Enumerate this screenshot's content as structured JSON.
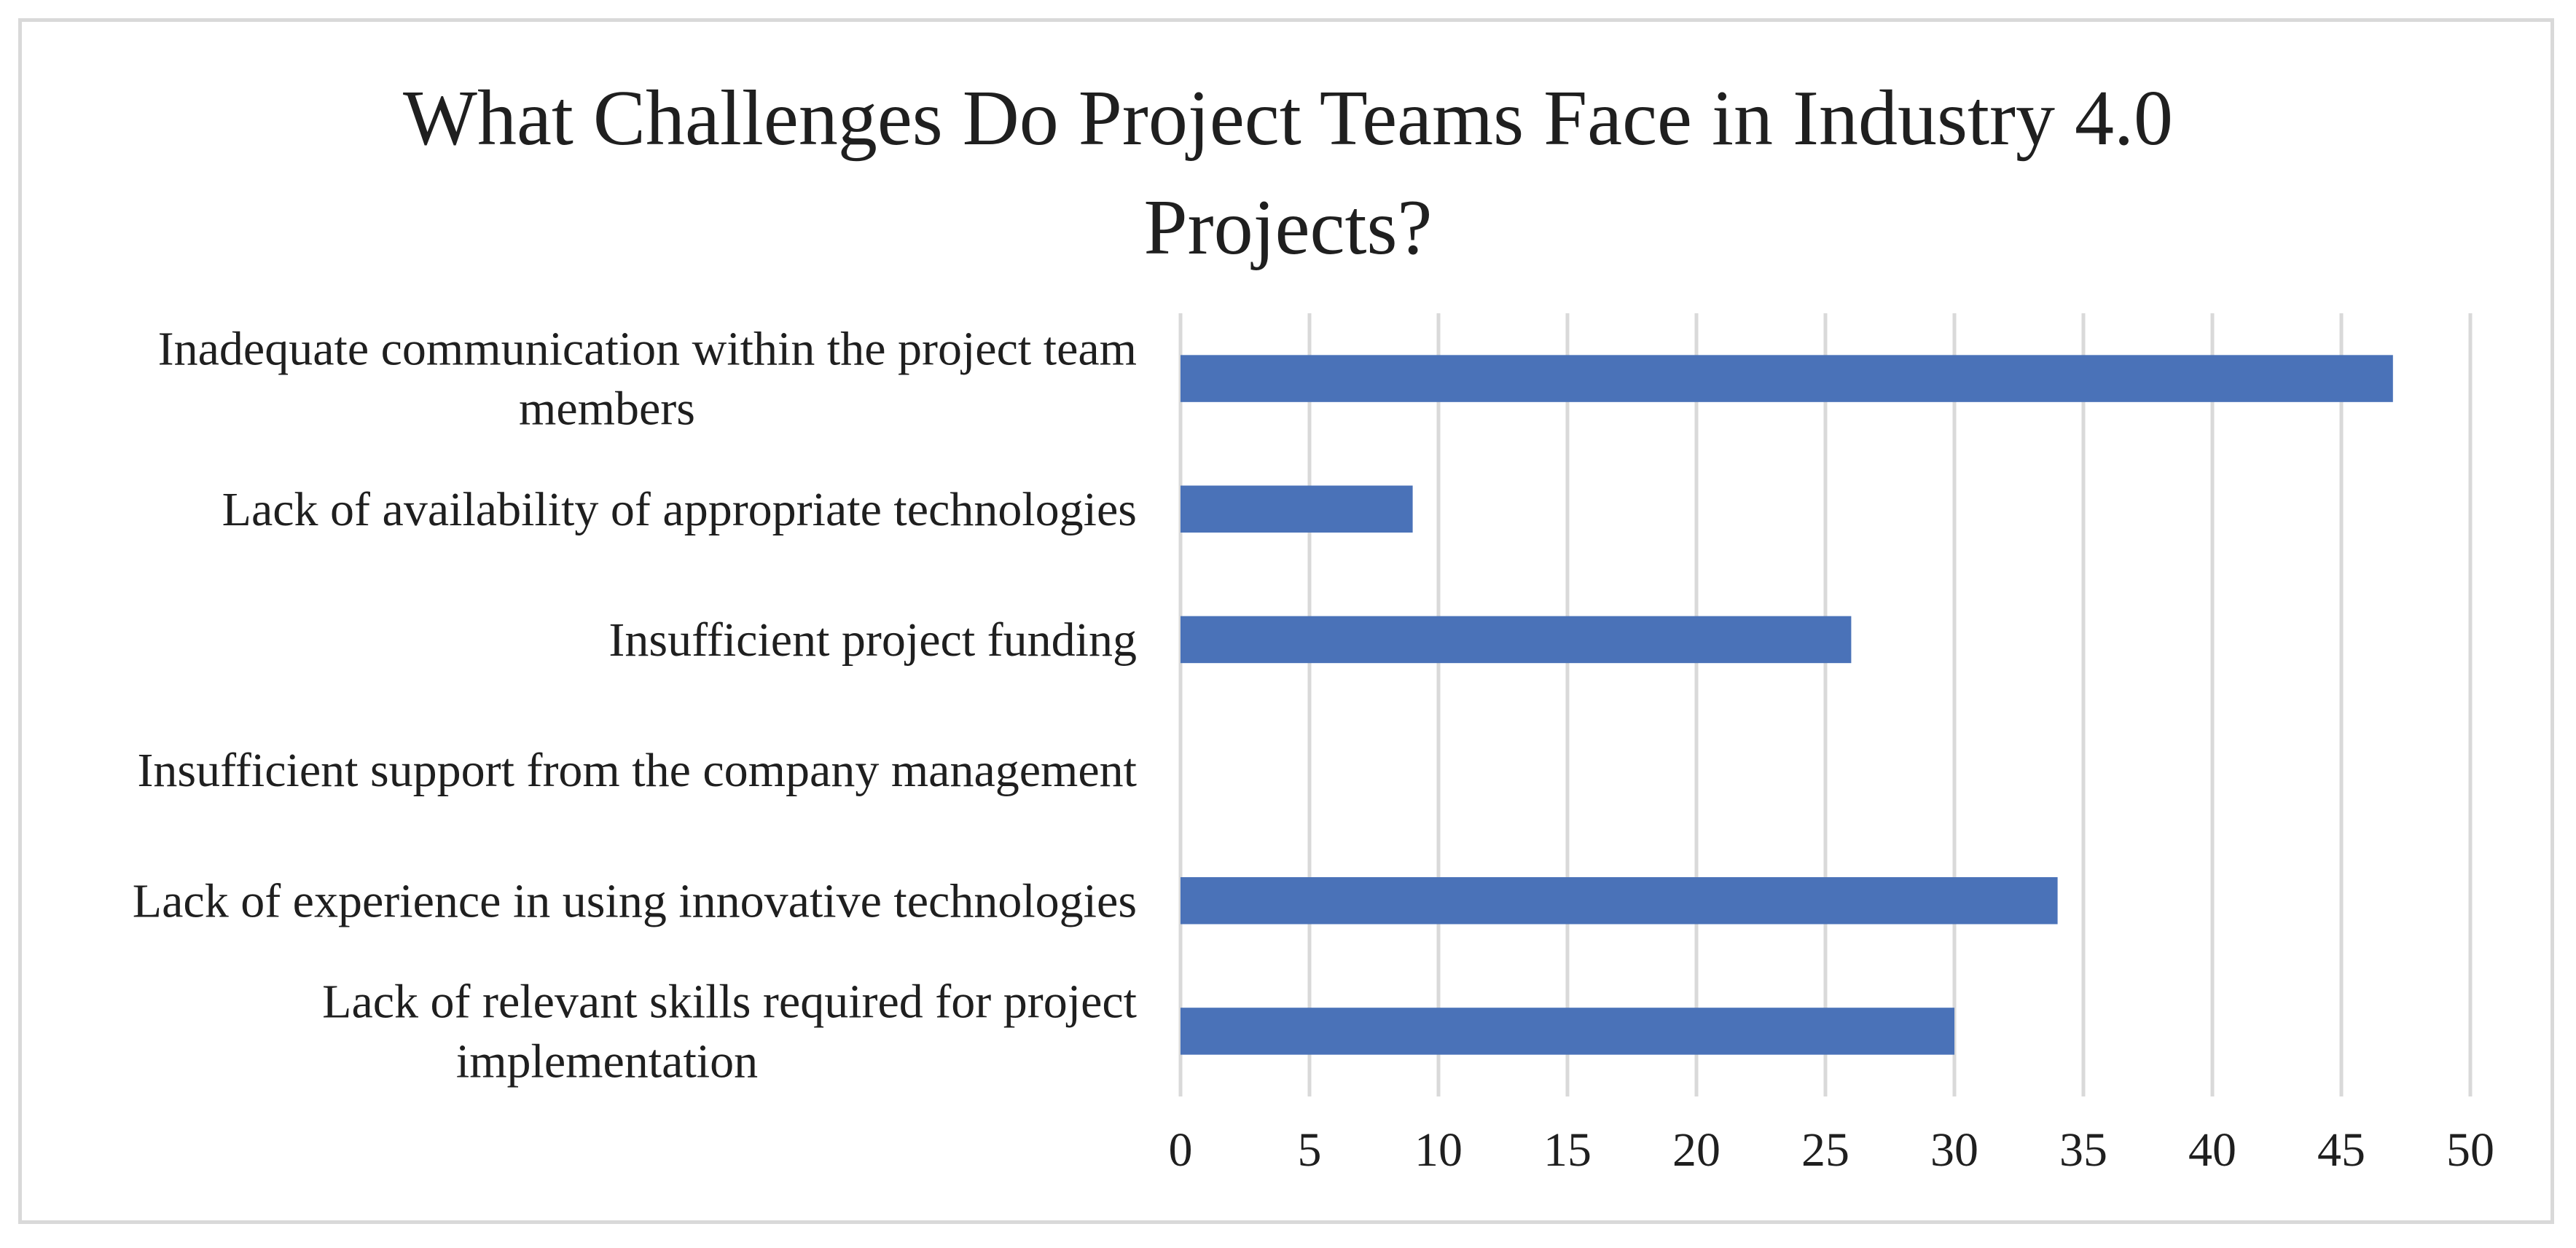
{
  "chart_data": {
    "type": "bar",
    "orientation": "horizontal",
    "title_lines": [
      "What Challenges Do Project Teams Face in Industry 4.0",
      "Projects?"
    ],
    "categories": [
      [
        "Inadequate communication within the project team",
        "members"
      ],
      [
        "Lack of availability of appropriate technologies"
      ],
      [
        "Insufficient project funding"
      ],
      [
        "Insufficient support from the company management"
      ],
      [
        "Lack of experience in using innovative technologies"
      ],
      [
        "Lack of relevant skills required for project",
        "implementation"
      ]
    ],
    "values": [
      47,
      9,
      26,
      0,
      34,
      30
    ],
    "xlim": [
      0,
      50
    ],
    "xticks": [
      0,
      5,
      10,
      15,
      20,
      25,
      30,
      35,
      40,
      45,
      50
    ],
    "grid": "vertical",
    "legend": "none",
    "colors": {
      "bar": "#4a72b8",
      "grid": "#d9d9d9",
      "text": "#1f1f1f"
    }
  }
}
